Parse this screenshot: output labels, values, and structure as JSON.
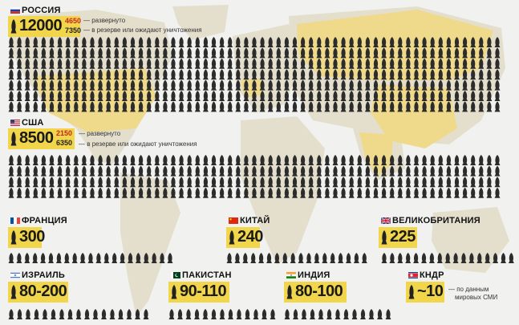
{
  "colors": {
    "accent": "#f1d54a",
    "bomb": "#2c2c2c",
    "map_land": "#e4dfcd",
    "map_highlight": "#efd98a",
    "background": "#f1f1ef",
    "deployed_red": "#c62828"
  },
  "icons": {
    "bomb": "bomb-icon"
  },
  "russia": {
    "name": "РОССИЯ",
    "total": "12000",
    "deployed": "4650",
    "reserve": "7350",
    "deployed_note": "— развернуто",
    "reserve_note": "— в резерве или ожидают уничтожения"
  },
  "usa": {
    "name": "США",
    "total": "8500",
    "deployed": "2150",
    "reserve": "6350",
    "deployed_note": "— развернуто",
    "reserve_note": "— в резерве или ожидают уничтожения"
  },
  "france": {
    "name": "ФРАНЦИЯ",
    "total": "300"
  },
  "china": {
    "name": "КИТАЙ",
    "total": "240"
  },
  "uk": {
    "name": "ВЕЛИКОБРИТАНИЯ",
    "total": "225"
  },
  "israel": {
    "name": "ИЗРАИЛЬ",
    "total": "80-200"
  },
  "pakistan": {
    "name": "ПАКИСТАН",
    "total": "90-110"
  },
  "india": {
    "name": "ИНДИЯ",
    "total": "80-100"
  },
  "dprk": {
    "name": "КНДР",
    "total": "~10",
    "note_line1": "— по данным",
    "note_line2": "мировых СМИ"
  }
}
